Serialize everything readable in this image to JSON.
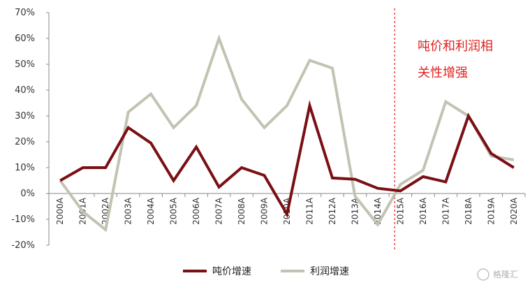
{
  "chart_data": {
    "type": "line",
    "categories": [
      "2000A",
      "2001A",
      "2002A",
      "2003A",
      "2004A",
      "2005A",
      "2006A",
      "2007A",
      "2008A",
      "2009A",
      "2010A",
      "2011A",
      "2012A",
      "2013A",
      "2014A",
      "2015A",
      "2016A",
      "2017A",
      "2018A",
      "2019A",
      "2020A"
    ],
    "series": [
      {
        "name": "吨价增速",
        "color": "#7a0f14",
        "values": [
          5,
          10,
          10,
          25.5,
          19.5,
          5,
          18,
          2.5,
          10,
          7,
          -8,
          34,
          6,
          5.5,
          2,
          1,
          6.5,
          4.5,
          30,
          15.5,
          10
        ]
      },
      {
        "name": "利润增速",
        "color": "#c3c3b3",
        "values": [
          5,
          -7,
          -14,
          31.5,
          38.5,
          25.5,
          34,
          60,
          36.5,
          25.5,
          34,
          51.5,
          48.5,
          -1,
          -12,
          3.5,
          9,
          35.5,
          30,
          14.5,
          13
        ]
      }
    ],
    "ylim": [
      -20,
      70
    ],
    "ytick_labels": [
      "70%",
      "60%",
      "50%",
      "40%",
      "30%",
      "20%",
      "10%",
      "0%",
      "-10%",
      "-20%"
    ],
    "ytick_values": [
      70,
      60,
      50,
      40,
      30,
      20,
      10,
      0,
      -10,
      -20
    ],
    "divider_category": "2015A",
    "annotation": [
      "吨价和利润相",
      "关性增强"
    ],
    "annotation_color": "#e02020",
    "legend_position": "bottom",
    "grid": false
  },
  "watermark": "格隆汇"
}
